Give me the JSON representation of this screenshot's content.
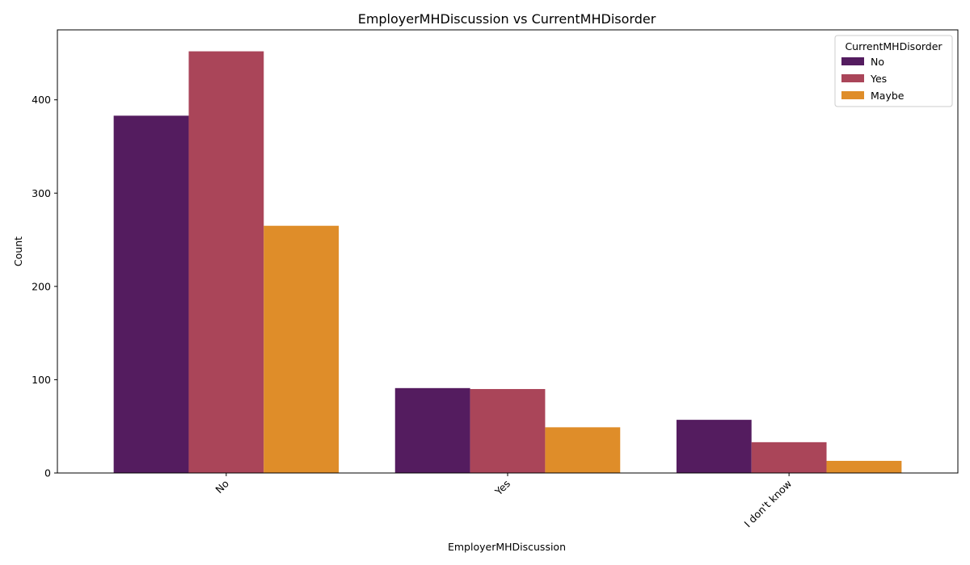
{
  "chart_data": {
    "type": "bar",
    "title": "EmployerMHDiscussion vs CurrentMHDisorder",
    "xlabel": "EmployerMHDiscussion",
    "ylabel": "Count",
    "categories": [
      "No",
      "Yes",
      "I don't know"
    ],
    "series": [
      {
        "name": "No",
        "values": [
          383,
          91,
          57
        ],
        "color": "#541c5f"
      },
      {
        "name": "Yes",
        "values": [
          452,
          90,
          33
        ],
        "color": "#aa4559"
      },
      {
        "name": "Maybe",
        "values": [
          265,
          49,
          13
        ],
        "color": "#df8d29"
      }
    ],
    "ylim": [
      0,
      475
    ],
    "yticks": [
      "0",
      "100",
      "200",
      "300",
      "400"
    ],
    "legend": {
      "title": "CurrentMHDisorder",
      "placement": "top-right"
    },
    "grid": false
  }
}
